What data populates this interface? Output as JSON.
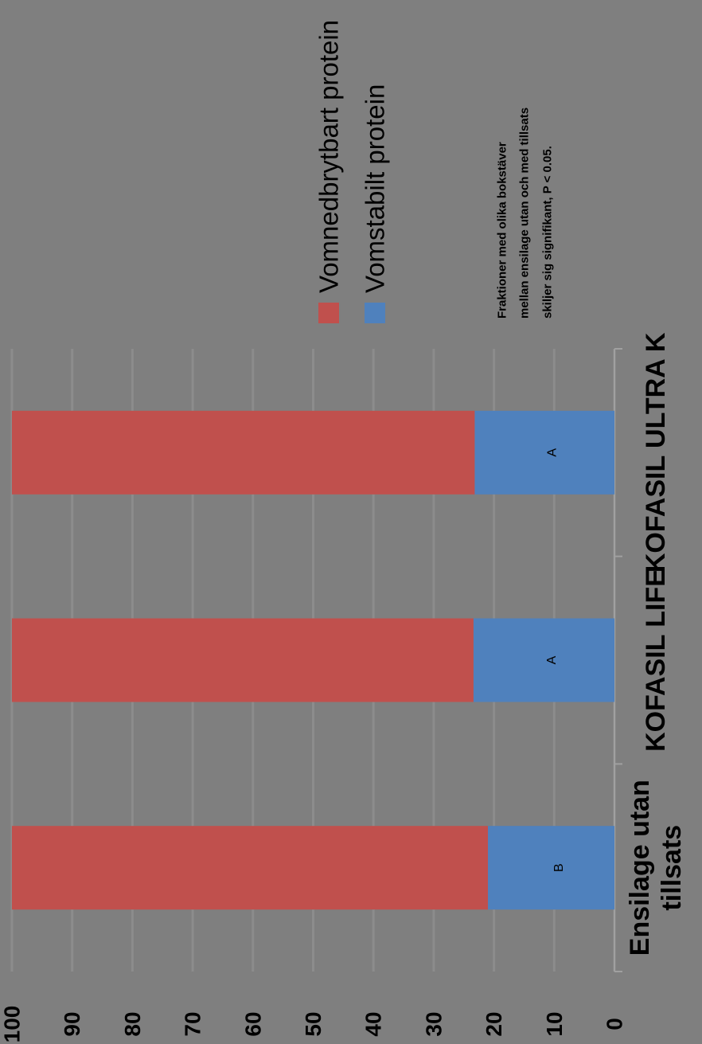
{
  "chart_data": {
    "type": "bar",
    "orientation": "vertical",
    "stacked": true,
    "categories": [
      "Ensilage utan tillsats",
      "KOFASIL LIFE",
      "KOFASIL ULTRA K"
    ],
    "category_lines": [
      [
        "Ensilage utan",
        "tillsats"
      ],
      [
        "KOFASIL LIFE"
      ],
      [
        "KOFASIL ULTRA K"
      ]
    ],
    "series": [
      {
        "name": "Vomstabilt protein",
        "color": "#4f81bd",
        "values": [
          21,
          23.4,
          23.2
        ],
        "labels": [
          "B",
          "A",
          "A"
        ]
      },
      {
        "name": "Vomnedbrytbart protein",
        "color": "#c0504d",
        "values": [
          79,
          76.6,
          76.8
        ]
      }
    ],
    "ylim": [
      0,
      100
    ],
    "yticks": [
      0,
      10,
      20,
      30,
      40,
      50,
      60,
      70,
      80,
      90,
      100
    ],
    "grid": true,
    "legend_position": "right",
    "note_lines": [
      "Fraktioner med olika bokstäver",
      "mellan ensilage utan och med tillsats",
      "skiljer sig signifikant, P < 0.05."
    ],
    "title": "",
    "xlabel": "",
    "ylabel": ""
  }
}
